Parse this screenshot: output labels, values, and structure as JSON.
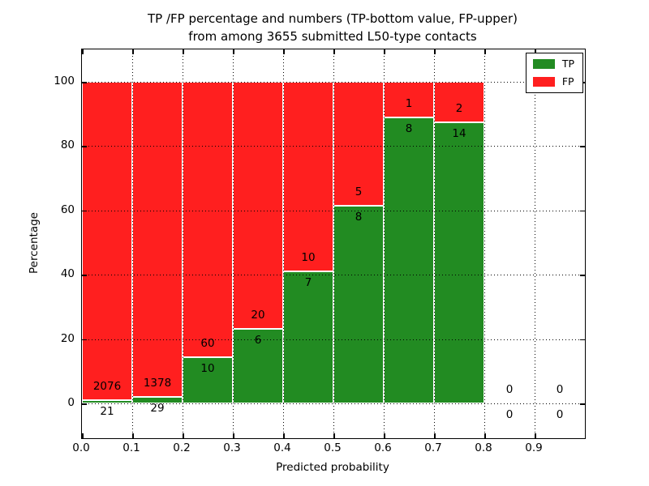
{
  "figure": {
    "title_line1": "TP /FP percentage and numbers (TP-bottom value, FP-upper)",
    "title_line2": "from among 3655 submitted L50-type contacts"
  },
  "chart_data": {
    "type": "bar",
    "subtype": "stacked-percentage",
    "title": "TP /FP percentage and numbers (TP-bottom value, FP-upper)\nfrom among 3655 submitted L50-type contacts",
    "xlabel": "Predicted probability",
    "ylabel": "Percentage",
    "xlim": [
      0.0,
      1.0
    ],
    "ylim": [
      -10,
      110
    ],
    "x_tick_labels": [
      "0.0",
      "0.1",
      "0.2",
      "0.3",
      "0.4",
      "0.5",
      "0.6",
      "0.7",
      "0.8",
      "0.9"
    ],
    "x_tick_values": [
      0.0,
      0.1,
      0.2,
      0.3,
      0.4,
      0.5,
      0.6,
      0.7,
      0.8,
      0.9
    ],
    "y_tick_labels": [
      "0",
      "20",
      "40",
      "60",
      "80",
      "100"
    ],
    "y_tick_values": [
      0,
      20,
      40,
      60,
      80,
      100
    ],
    "grid": {
      "style": "dotted",
      "color": "#000000",
      "above_bars": true
    },
    "legend": {
      "position": "upper-right",
      "entries": [
        {
          "label": "TP",
          "color": "#228b22"
        },
        {
          "label": "FP",
          "color": "#ff1f1f"
        }
      ]
    },
    "total_submitted": 3655,
    "bins": [
      {
        "range": [
          0.0,
          0.1
        ],
        "tp": 21,
        "fp": 2076
      },
      {
        "range": [
          0.1,
          0.2
        ],
        "tp": 29,
        "fp": 1378
      },
      {
        "range": [
          0.2,
          0.3
        ],
        "tp": 10,
        "fp": 60
      },
      {
        "range": [
          0.3,
          0.4
        ],
        "tp": 6,
        "fp": 20
      },
      {
        "range": [
          0.4,
          0.5
        ],
        "tp": 7,
        "fp": 10
      },
      {
        "range": [
          0.5,
          0.6
        ],
        "tp": 8,
        "fp": 5
      },
      {
        "range": [
          0.6,
          0.7
        ],
        "tp": 8,
        "fp": 1
      },
      {
        "range": [
          0.7,
          0.8
        ],
        "tp": 14,
        "fp": 2
      },
      {
        "range": [
          0.8,
          0.9
        ],
        "tp": 0,
        "fp": 0
      },
      {
        "range": [
          0.9,
          1.0
        ],
        "tp": 0,
        "fp": 0
      }
    ]
  }
}
